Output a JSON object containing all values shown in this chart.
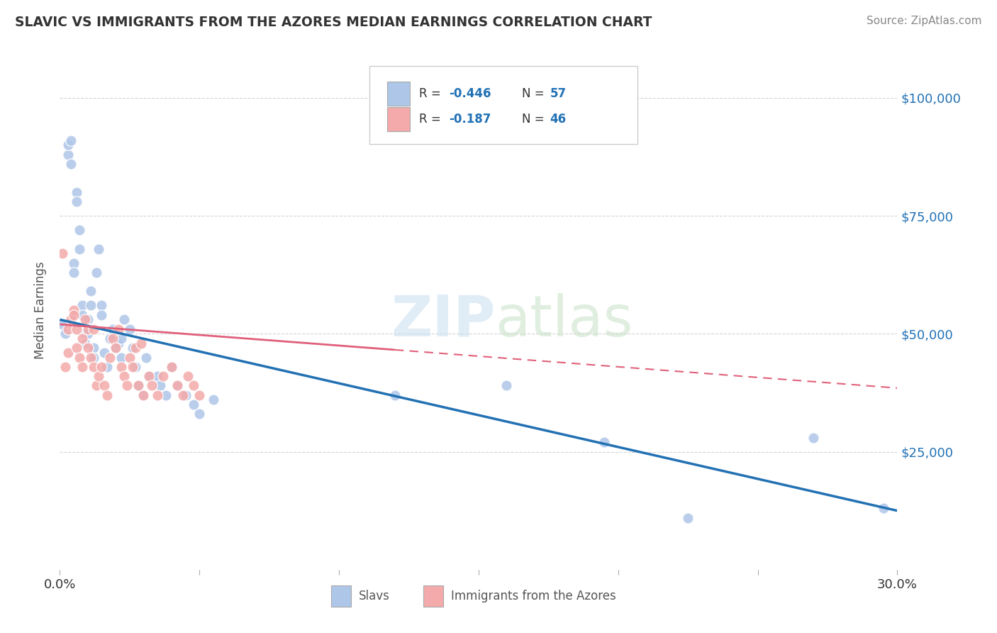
{
  "title": "SLAVIC VS IMMIGRANTS FROM THE AZORES MEDIAN EARNINGS CORRELATION CHART",
  "source": "Source: ZipAtlas.com",
  "ylabel": "Median Earnings",
  "xlim": [
    0.0,
    0.3
  ],
  "ylim": [
    0,
    110000
  ],
  "yticks": [
    0,
    25000,
    50000,
    75000,
    100000
  ],
  "ytick_labels": [
    "",
    "$25,000",
    "$50,000",
    "$75,000",
    "$100,000"
  ],
  "background_color": "#ffffff",
  "grid_color": "#d0d0d0",
  "blue_color": "#aec6e8",
  "pink_color": "#f4aaaa",
  "blue_line_color": "#2271b3",
  "pink_line_color": "#e0607a",
  "legend_r1_val": "-0.446",
  "legend_n1_val": "57",
  "legend_r2_val": "-0.187",
  "legend_n2_val": "46",
  "blue_intercept": 53000,
  "blue_slope": -135000,
  "pink_intercept": 52000,
  "pink_slope": -45000,
  "slavs_x": [
    0.001,
    0.002,
    0.003,
    0.003,
    0.004,
    0.004,
    0.005,
    0.005,
    0.006,
    0.006,
    0.007,
    0.007,
    0.008,
    0.008,
    0.009,
    0.009,
    0.01,
    0.01,
    0.011,
    0.011,
    0.012,
    0.012,
    0.013,
    0.014,
    0.015,
    0.015,
    0.016,
    0.017,
    0.018,
    0.019,
    0.02,
    0.021,
    0.022,
    0.022,
    0.023,
    0.025,
    0.026,
    0.027,
    0.028,
    0.03,
    0.031,
    0.032,
    0.035,
    0.036,
    0.038,
    0.04,
    0.042,
    0.045,
    0.048,
    0.05,
    0.055,
    0.12,
    0.16,
    0.195,
    0.225,
    0.27,
    0.295
  ],
  "slavs_y": [
    52000,
    50000,
    88000,
    90000,
    91000,
    86000,
    65000,
    63000,
    80000,
    78000,
    72000,
    68000,
    56000,
    54000,
    50000,
    48000,
    53000,
    50000,
    59000,
    56000,
    47000,
    45000,
    63000,
    68000,
    56000,
    54000,
    46000,
    43000,
    49000,
    51000,
    47000,
    48000,
    49000,
    45000,
    53000,
    51000,
    47000,
    43000,
    39000,
    37000,
    45000,
    41000,
    41000,
    39000,
    37000,
    43000,
    39000,
    37000,
    35000,
    33000,
    36000,
    37000,
    39000,
    27000,
    11000,
    28000,
    13000
  ],
  "azores_x": [
    0.001,
    0.002,
    0.003,
    0.003,
    0.004,
    0.005,
    0.005,
    0.006,
    0.006,
    0.007,
    0.008,
    0.008,
    0.009,
    0.01,
    0.01,
    0.011,
    0.012,
    0.012,
    0.013,
    0.014,
    0.015,
    0.016,
    0.017,
    0.018,
    0.019,
    0.02,
    0.021,
    0.022,
    0.023,
    0.024,
    0.025,
    0.026,
    0.027,
    0.028,
    0.029,
    0.03,
    0.032,
    0.033,
    0.035,
    0.037,
    0.04,
    0.042,
    0.044,
    0.046,
    0.048,
    0.05
  ],
  "azores_y": [
    67000,
    43000,
    46000,
    51000,
    53000,
    55000,
    54000,
    51000,
    47000,
    45000,
    43000,
    49000,
    53000,
    51000,
    47000,
    45000,
    43000,
    51000,
    39000,
    41000,
    43000,
    39000,
    37000,
    45000,
    49000,
    47000,
    51000,
    43000,
    41000,
    39000,
    45000,
    43000,
    47000,
    39000,
    48000,
    37000,
    41000,
    39000,
    37000,
    41000,
    43000,
    39000,
    37000,
    41000,
    39000,
    37000
  ]
}
